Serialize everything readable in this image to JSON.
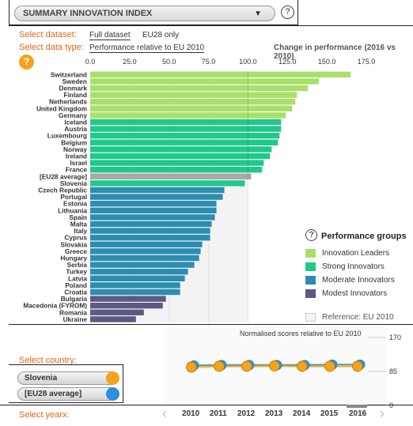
{
  "index_selector": {
    "label": "SUMMARY INNOVATION INDEX",
    "arrow": "▼",
    "help": "?"
  },
  "dataset": {
    "label": "Select dataset:",
    "options": [
      "Full dataset",
      "EU28 only"
    ],
    "selected": "Full dataset"
  },
  "datatype": {
    "label": "Select data type:",
    "value": "Performance relative to EU 2010"
  },
  "change_toggle": "Change in performance (2016 vs 2010)",
  "help_badge": "?",
  "chart_data": {
    "type": "bar",
    "orientation": "horizontal",
    "x_ticks": [
      "0.0",
      "25.0",
      "50.0",
      "75.0",
      "100.0",
      "125.0",
      "150.0",
      "175.0"
    ],
    "xlim": [
      0,
      175
    ],
    "reference_value": 100,
    "categories": [
      "Switzerland",
      "Sweden",
      "Denmark",
      "Finland",
      "Netherlands",
      "United Kingdom",
      "Germany",
      "Iceland",
      "Austria",
      "Luxembourg",
      "Belgium",
      "Norway",
      "Ireland",
      "Israel",
      "France",
      "[EU28 average]",
      "Slovenia",
      "Czech Republic",
      "Portugal",
      "Estonia",
      "Lithuania",
      "Spain",
      "Malta",
      "Italy",
      "Cyprus",
      "Slovakia",
      "Greece",
      "Hungary",
      "Serbia",
      "Turkey",
      "Latvia",
      "Poland",
      "Croatia",
      "Bulgaria",
      "Macedonia (FYROM)",
      "Romania",
      "Ukraine"
    ],
    "values": [
      165,
      145,
      138,
      131,
      130,
      128,
      124,
      121,
      121,
      120,
      119,
      115,
      114,
      110,
      109,
      102,
      98,
      85,
      84,
      80,
      80,
      79,
      77,
      76,
      76,
      71,
      70,
      69,
      66,
      62,
      60,
      57,
      57,
      48,
      46,
      34,
      29
    ],
    "groups": [
      "leader",
      "leader",
      "leader",
      "leader",
      "leader",
      "leader",
      "leader",
      "strong",
      "strong",
      "strong",
      "strong",
      "strong",
      "strong",
      "strong",
      "strong",
      "eu",
      "strong",
      "moderate",
      "moderate",
      "moderate",
      "moderate",
      "moderate",
      "moderate",
      "moderate",
      "moderate",
      "moderate",
      "moderate",
      "moderate",
      "moderate",
      "moderate",
      "moderate",
      "moderate",
      "moderate",
      "modest",
      "modest",
      "modest",
      "modest"
    ]
  },
  "legend": {
    "title": "Performance groups",
    "help": "?",
    "items": [
      {
        "label": "Innovation Leaders",
        "color": "#a8e06a"
      },
      {
        "label": "Strong Innovators",
        "color": "#20c98a"
      },
      {
        "label": "Moderate Innovators",
        "color": "#2c8db0"
      },
      {
        "label": "Modest Innovators",
        "color": "#5a5a82"
      }
    ],
    "reference": "Reference: EU 2010"
  },
  "trend": {
    "caption": "Normalised scores relative to EU 2010",
    "y_ticks": [
      "170",
      "85",
      "0"
    ],
    "years": [
      "2010",
      "2011",
      "2012",
      "2013",
      "2014",
      "2015",
      "2016"
    ],
    "selected_year": "2016",
    "series": [
      {
        "name": "Slovenia",
        "color": "#f7a21b",
        "values": [
          96,
          98,
          98,
          99,
          98,
          98,
          98
        ]
      },
      {
        "name": "[EU28 average]",
        "color": "#2a90e0",
        "values": [
          100,
          101,
          101,
          101,
          101,
          102,
          102
        ]
      }
    ]
  },
  "country_select": {
    "label": "Select country:",
    "items": [
      "Slovenia",
      "[EU28 average]"
    ]
  },
  "year_select": {
    "label": "Select yearx:",
    "prev": "‹",
    "next": "›"
  },
  "colors": {
    "orange": "#e8650f",
    "leader": "#a8e06a",
    "strong": "#20c98a",
    "moderate": "#2c8db0",
    "modest": "#5a5a82",
    "eu": "#a8a8a8"
  }
}
